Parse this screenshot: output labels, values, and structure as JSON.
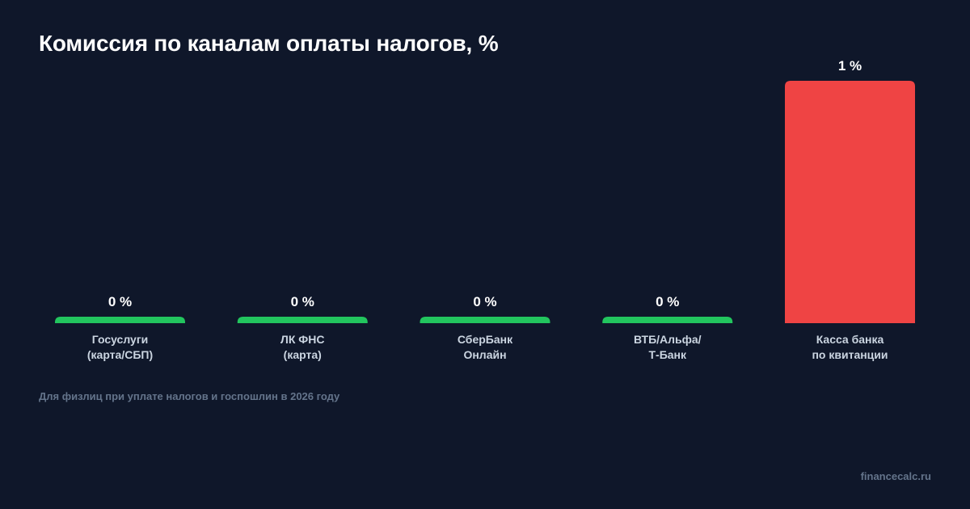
{
  "title": "Комиссия по каналам оплаты налогов, %",
  "subtitle": "Для физлиц при уплате налогов и госпошлин в 2026 году",
  "footer": "financecalc.ru",
  "colors": {
    "background": "#0f172a",
    "zero_bar": "#22c55e",
    "positive_bar": "#ef4444",
    "value_text": "#ffffff",
    "category_text": "#cbd5e1",
    "muted_text": "#64748b"
  },
  "chart_data": {
    "type": "bar",
    "title": "Комиссия по каналам оплаты налогов, %",
    "categories": [
      [
        "Госуслуги",
        "(карта/СБП)"
      ],
      [
        "ЛК ФНС",
        "(карта)"
      ],
      [
        "СберБанк",
        "Онлайн"
      ],
      [
        "ВТБ/Альфа/",
        "Т-Банк"
      ],
      [
        "Касса банка",
        "по квитанции"
      ]
    ],
    "values": [
      0,
      0,
      0,
      0,
      1
    ],
    "value_labels": [
      "0 %",
      "0 %",
      "0 %",
      "0 %",
      "1 %"
    ],
    "ylim": [
      0,
      1
    ],
    "grid": false,
    "legend": "none"
  }
}
